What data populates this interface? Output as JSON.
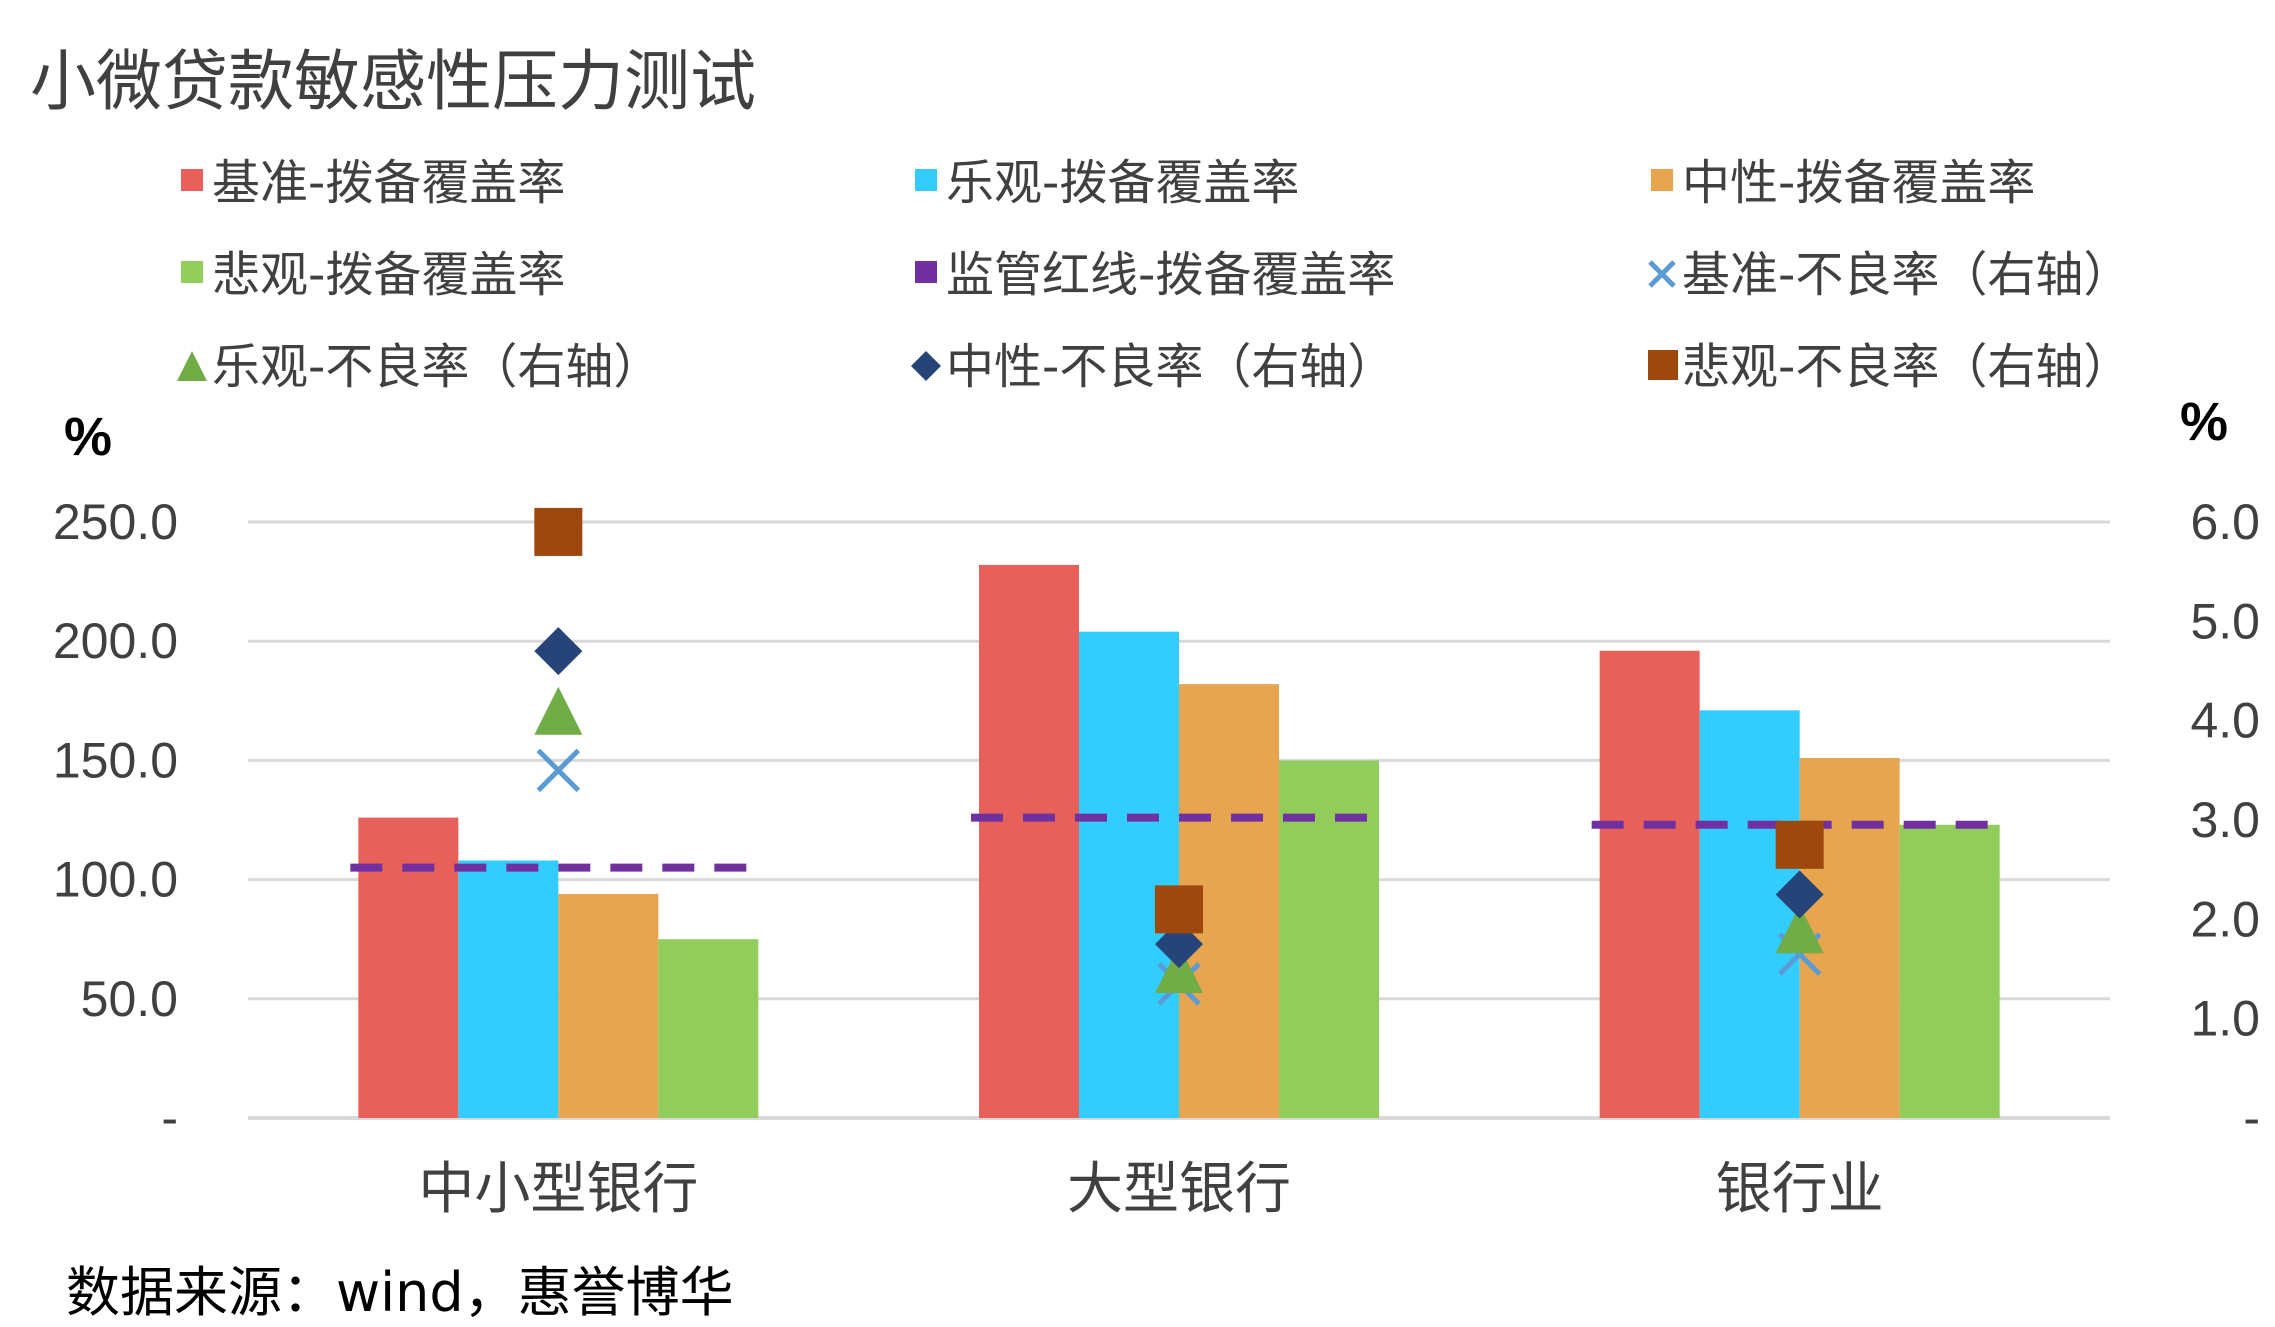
{
  "chart_data": {
    "type": "bar",
    "title": "小微贷款敏感性压力测试",
    "source": "数据来源：wind，惠誉博华",
    "categories": [
      "中小型银行",
      "大型银行",
      "银行业"
    ],
    "left_axis": {
      "unit": "%",
      "ylim": [
        0,
        250
      ],
      "ticks": [
        "-",
        "50.0",
        "100.0",
        "150.0",
        "200.0",
        "250.0"
      ],
      "tick_values": [
        0,
        50,
        100,
        150,
        200,
        250
      ]
    },
    "right_axis": {
      "unit": "%",
      "ylim": [
        0,
        6
      ],
      "ticks": [
        "-",
        "1.0",
        "2.0",
        "3.0",
        "4.0",
        "5.0",
        "6.0"
      ],
      "tick_values": [
        0,
        1,
        2,
        3,
        4,
        5,
        6
      ]
    },
    "grid": true,
    "legend_position": "top",
    "bar_series": [
      {
        "name": "基准-拨备覆盖率",
        "color": "#E8605A",
        "values": [
          126,
          232,
          196
        ]
      },
      {
        "name": "乐观-拨备覆盖率",
        "color": "#33CCFF",
        "values": [
          108,
          204,
          171
        ]
      },
      {
        "name": "中性-拨备覆盖率",
        "color": "#E6A54E",
        "values": [
          94,
          182,
          151
        ]
      },
      {
        "name": "悲观-拨备覆盖率",
        "color": "#92CD5C",
        "values": [
          75,
          150,
          123
        ]
      }
    ],
    "line_series": [
      {
        "name": "监管红线-拨备覆盖率",
        "color": "#7030A0",
        "style": "dashed",
        "values": [
          105,
          126,
          123
        ]
      }
    ],
    "marker_series": [
      {
        "name": "基准-不良率（右轴）",
        "color": "#5B9BD5",
        "marker": "x",
        "axis": "right",
        "values": [
          3.5,
          1.35,
          1.65
        ]
      },
      {
        "name": "乐观-不良率（右轴）",
        "color": "#70AD47",
        "marker": "triangle",
        "axis": "right",
        "values": [
          4.1,
          1.5,
          1.9
        ]
      },
      {
        "name": "中性-不良率（右轴）",
        "color": "#264478",
        "marker": "diamond",
        "axis": "right",
        "values": [
          4.7,
          1.75,
          2.25
        ]
      },
      {
        "name": "悲观-不良率（右轴）",
        "color": "#9E480E",
        "marker": "square",
        "axis": "right",
        "values": [
          5.9,
          2.1,
          2.75
        ]
      }
    ]
  }
}
